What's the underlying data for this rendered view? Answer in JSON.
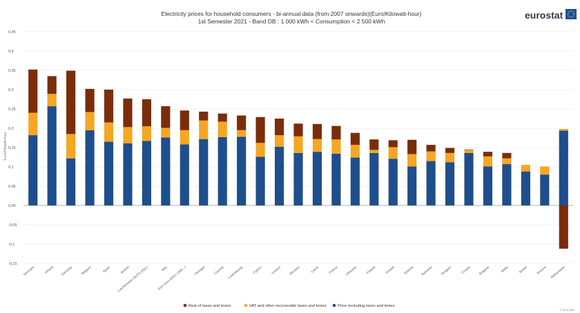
{
  "chart_data": {
    "type": "bar",
    "stacked": true,
    "title": "Electricity prices for household consumers - bi-annual data (from 2007 onwards)(Euro/Kilowatt-hour)",
    "subtitle": "1st Semester 2021 - Band DB : 1 000 kWh < Consumption < 2 500 kWh",
    "ylabel": "Euro/Kilowatt-hour",
    "ylim": [
      -0.15,
      0.45
    ],
    "yticks": [
      "-0,15",
      "-0,1",
      "-0,05",
      "0,00",
      "0,05",
      "0,1",
      "0,15",
      "0,2",
      "0,25",
      "0,3",
      "0,35",
      "0,4",
      "0,45"
    ],
    "ytick_values": [
      -0.15,
      -0.1,
      -0.05,
      0,
      0.05,
      0.1,
      0.15,
      0.2,
      0.25,
      0.3,
      0.35,
      0.4,
      0.45
    ],
    "grid": true,
    "legend_position": "bottom",
    "categories": [
      "Denmark",
      "Ireland",
      "Germany",
      "Belgium",
      "Spain",
      "Austria",
      "Liechtenstein (NUTS 2021)",
      "Italy",
      "Euro area (EA11-1999...)",
      "Portugal",
      "Czechia",
      "Luxembourg",
      "Cyprus",
      "Greece",
      "Slovakia",
      "Latvia",
      "France",
      "Lithuania",
      "Finland",
      "Poland",
      "Estonia",
      "Romania",
      "Hungary",
      "Croatia",
      "Bulgaria",
      "Malta",
      "Serbia",
      "Kosovo",
      "Netherlands"
    ],
    "series": [
      {
        "name": "Price excluding taxes and levies",
        "color": "#1f4e8c",
        "values": [
          0.182,
          0.257,
          0.122,
          0.195,
          0.165,
          0.161,
          0.167,
          0.176,
          0.158,
          0.172,
          0.177,
          0.178,
          0.126,
          0.152,
          0.136,
          0.139,
          0.134,
          0.124,
          0.136,
          0.121,
          0.101,
          0.115,
          0.112,
          0.136,
          0.101,
          0.107,
          0.088,
          0.08,
          0.194
        ]
      },
      {
        "name": "VAT and other recoverable taxes and levies",
        "color": "#f5a623",
        "values": [
          0.058,
          0.032,
          0.063,
          0.047,
          0.05,
          0.042,
          0.038,
          0.025,
          0.037,
          0.048,
          0.04,
          0.017,
          0.036,
          0.03,
          0.043,
          0.033,
          0.037,
          0.033,
          0.008,
          0.03,
          0.032,
          0.025,
          0.024,
          0.008,
          0.026,
          0.015,
          0.017,
          0.021,
          0.004
        ]
      },
      {
        "name": "Rest of taxes and levies",
        "color": "#7b2d0a",
        "values": [
          0.112,
          0.046,
          0.164,
          0.06,
          0.085,
          0.074,
          0.07,
          0.056,
          0.051,
          0.023,
          0.021,
          0.038,
          0.067,
          0.043,
          0.033,
          0.039,
          0.035,
          0.031,
          0.027,
          0.018,
          0.037,
          0.017,
          0.013,
          0.001,
          0.012,
          0.014,
          0.0,
          0.0,
          -0.112
        ]
      }
    ]
  },
  "logo": {
    "text": "eurostat"
  },
  "credit": "© Eurostat"
}
